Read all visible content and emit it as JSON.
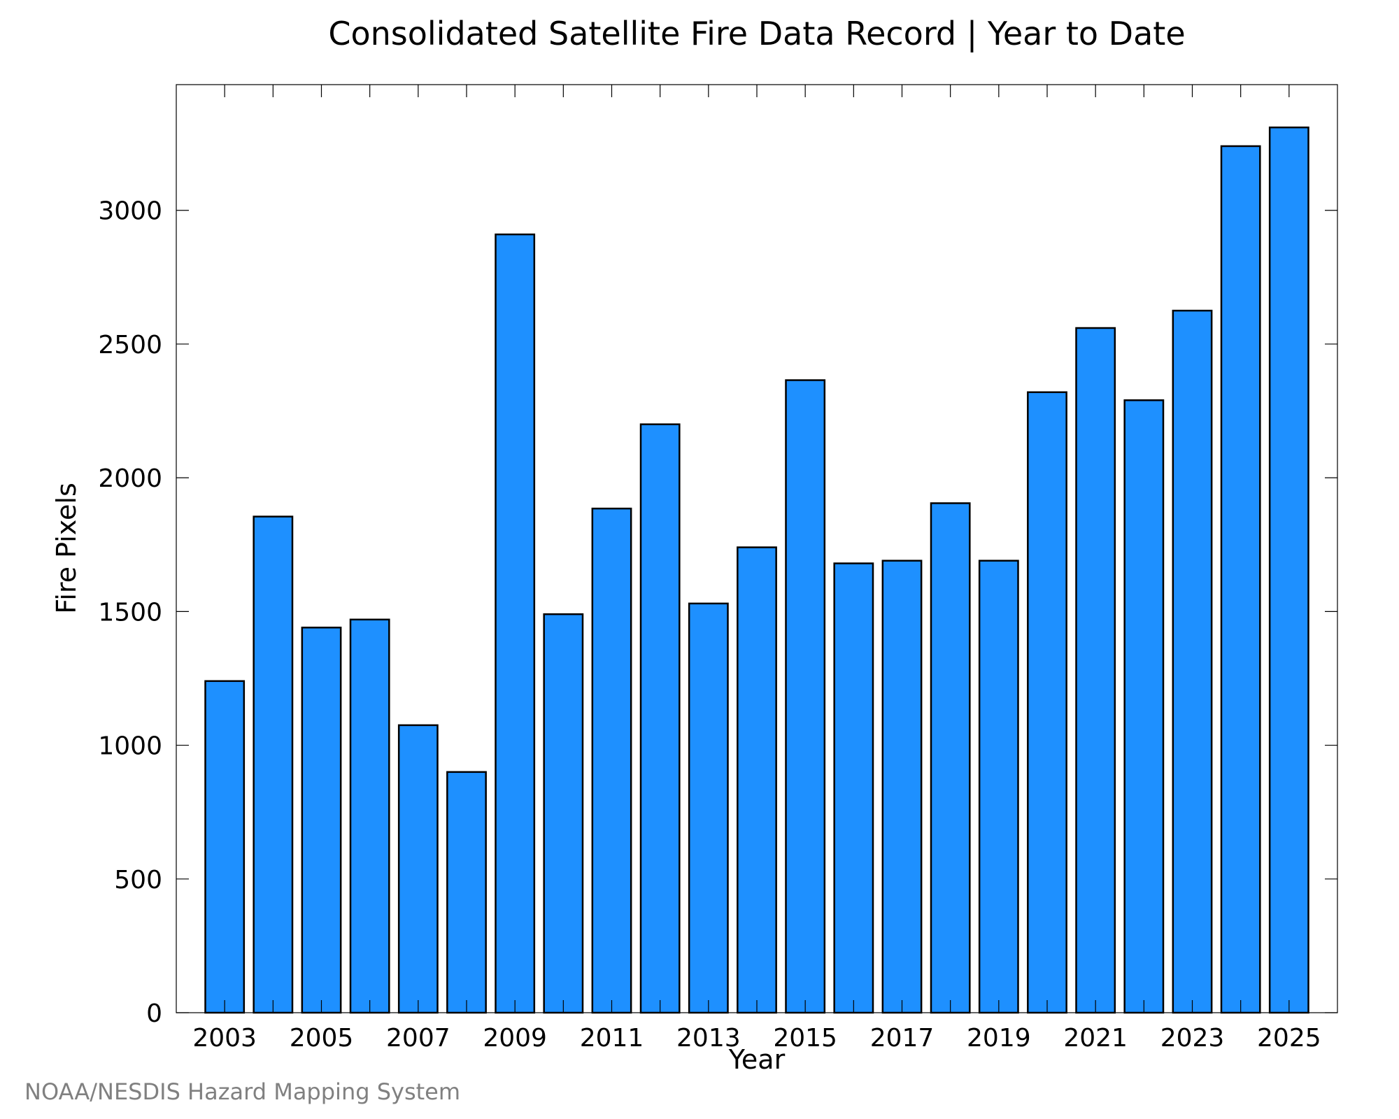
{
  "chart_data": {
    "type": "bar",
    "title": "Consolidated Satellite Fire Data Record | Year to Date",
    "xlabel": "Year",
    "ylabel": "Fire Pixels",
    "categories": [
      "2003",
      "2004",
      "2005",
      "2006",
      "2007",
      "2008",
      "2009",
      "2010",
      "2011",
      "2012",
      "2013",
      "2014",
      "2015",
      "2016",
      "2017",
      "2018",
      "2019",
      "2020",
      "2021",
      "2022",
      "2023",
      "2024",
      "2025"
    ],
    "values": [
      1240,
      1855,
      1440,
      1470,
      1075,
      900,
      2910,
      1490,
      1885,
      2200,
      1530,
      1740,
      2365,
      1680,
      1690,
      1905,
      1690,
      2320,
      2560,
      2290,
      2625,
      3240,
      3310
    ],
    "ylim": [
      0,
      3470
    ],
    "yticks": [
      0,
      500,
      1000,
      1500,
      2000,
      2500,
      3000
    ],
    "xtick_labels": [
      "2003",
      "2005",
      "2007",
      "2009",
      "2011",
      "2013",
      "2015",
      "2017",
      "2019",
      "2021",
      "2023",
      "2025"
    ],
    "bar_color": "#1e90ff",
    "grid": false,
    "legend": "none"
  },
  "credit": "NOAA/NESDIS Hazard Mapping System"
}
